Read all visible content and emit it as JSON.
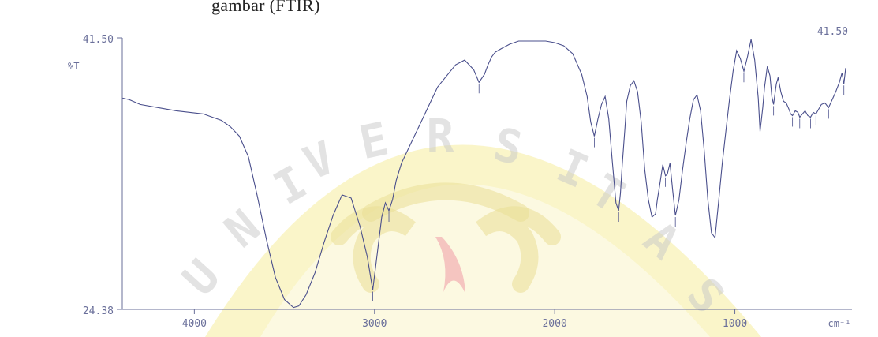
{
  "caption": "gambar (FTIR)",
  "watermark": {
    "text": "UNIVERSITAS",
    "fill_color": "#f6ec9c",
    "outline_color": "#e9df96",
    "accent_color": "#f2b8b8",
    "text_color": "#c8c8c8"
  },
  "chart_data": {
    "type": "line",
    "ylabel": "%T",
    "xlabel": "cm⁻¹",
    "y_top_label": "41.50",
    "y_bottom_label": "24.38",
    "ylim": [
      24.38,
      41.5
    ],
    "xlim": [
      4400,
      350
    ],
    "x_reversed": true,
    "top_right_label": "41.50",
    "x_ticks": [
      {
        "value": 4000,
        "label": "4000"
      },
      {
        "value": 3000,
        "label": "3000"
      },
      {
        "value": 2000,
        "label": "2000"
      },
      {
        "value": 1000,
        "label": "1000"
      }
    ],
    "line_color": "#4a4f8c",
    "axis_color": "#6a6f9a",
    "grid": false,
    "series": [
      {
        "x": [
          4398,
          4360,
          4300,
          4200,
          4100,
          3950,
          3900,
          3850,
          3800,
          3750,
          3700,
          3650,
          3600,
          3550,
          3500,
          3450,
          3420,
          3380,
          3330,
          3280,
          3230,
          3180,
          3130,
          3080,
          3040,
          3010,
          2990,
          2960,
          2940,
          2920,
          2900,
          2880,
          2850,
          2800,
          2750,
          2700,
          2650,
          2600,
          2550,
          2500,
          2450,
          2420,
          2390,
          2370,
          2350,
          2330,
          2300,
          2250,
          2200,
          2150,
          2100,
          2050,
          2000,
          1950,
          1900,
          1850,
          1820,
          1800,
          1780,
          1760,
          1740,
          1720,
          1700,
          1680,
          1660,
          1645,
          1635,
          1625,
          1610,
          1600,
          1580,
          1560,
          1540,
          1520,
          1500,
          1480,
          1460,
          1440,
          1430,
          1420,
          1400,
          1385,
          1375,
          1360,
          1345,
          1330,
          1310,
          1290,
          1270,
          1250,
          1230,
          1210,
          1190,
          1170,
          1150,
          1130,
          1110,
          1090,
          1070,
          1050,
          1030,
          1010,
          990,
          970,
          950,
          930,
          910,
          890,
          870,
          860,
          845,
          835,
          820,
          805,
          795,
          785,
          770,
          760,
          745,
          730,
          715,
          700,
          690,
          680,
          665,
          650,
          640,
          625,
          610,
          595,
          580,
          565,
          550,
          535,
          520,
          500,
          480,
          460,
          440,
          420,
          405,
          395,
          385
        ],
        "y": [
          37.7,
          37.6,
          37.3,
          37.1,
          36.9,
          36.7,
          36.5,
          36.3,
          35.9,
          35.3,
          34.0,
          31.5,
          28.8,
          26.4,
          25.0,
          24.5,
          24.6,
          25.3,
          26.7,
          28.6,
          30.3,
          31.6,
          31.4,
          29.6,
          27.7,
          25.6,
          27.4,
          30.2,
          31.1,
          30.6,
          31.3,
          32.5,
          33.6,
          34.8,
          36.0,
          37.2,
          38.4,
          39.1,
          39.8,
          40.1,
          39.5,
          38.7,
          39.2,
          39.8,
          40.3,
          40.6,
          40.8,
          41.1,
          41.3,
          41.3,
          41.3,
          41.3,
          41.2,
          41.0,
          40.5,
          39.2,
          37.8,
          36.2,
          35.3,
          36.4,
          37.3,
          37.8,
          36.4,
          33.7,
          31.1,
          30.6,
          31.7,
          33.5,
          35.8,
          37.5,
          38.5,
          38.8,
          38.1,
          36.2,
          33.2,
          31.3,
          30.2,
          30.4,
          31.3,
          32.0,
          33.5,
          32.8,
          32.9,
          33.6,
          31.9,
          30.3,
          31.3,
          33.2,
          34.9,
          36.4,
          37.6,
          37.9,
          36.9,
          34.4,
          31.3,
          29.2,
          28.9,
          31.2,
          33.6,
          35.6,
          37.6,
          39.4,
          40.7,
          40.2,
          39.4,
          40.3,
          41.4,
          40.1,
          37.7,
          35.6,
          37.1,
          38.4,
          39.7,
          39.1,
          37.8,
          37.3,
          38.6,
          39.0,
          38.1,
          37.5,
          37.4,
          37.0,
          36.7,
          36.6,
          36.9,
          36.8,
          36.5,
          36.7,
          36.9,
          36.6,
          36.5,
          36.8,
          36.7,
          37.0,
          37.3,
          37.4,
          37.1,
          37.6,
          38.1,
          38.7,
          39.3,
          38.6,
          39.6
        ]
      }
    ]
  }
}
